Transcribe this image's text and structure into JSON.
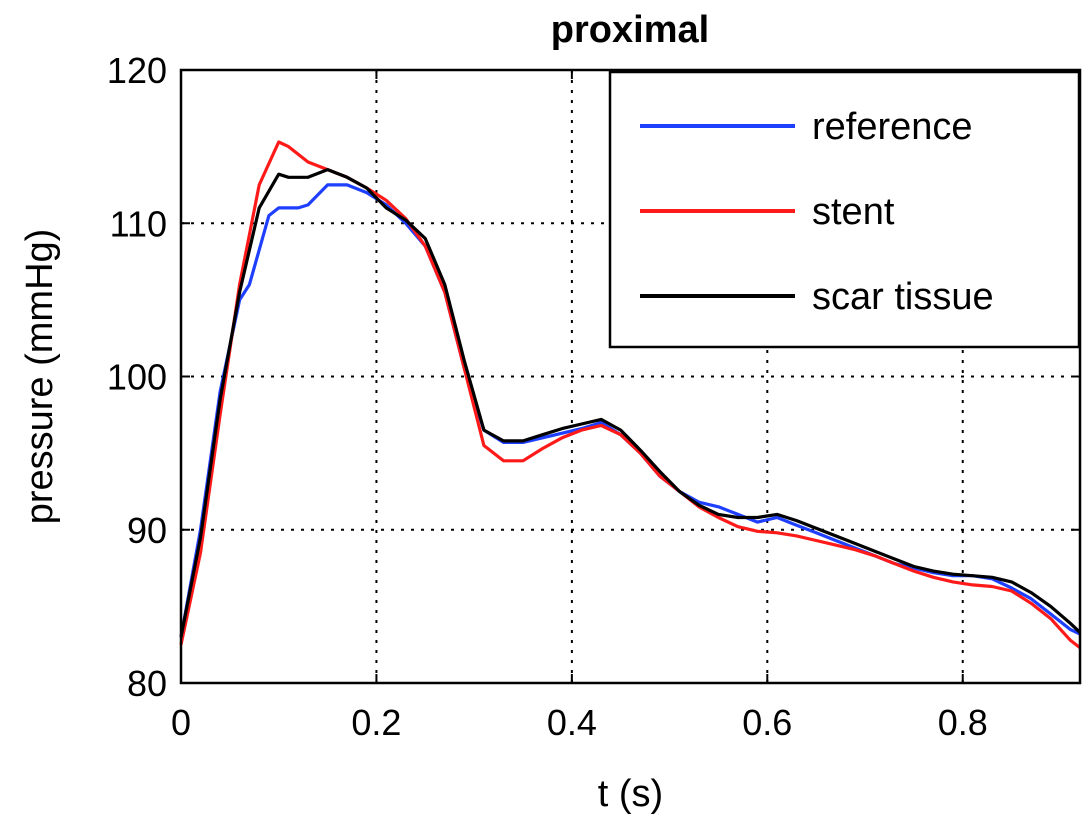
{
  "chart_data": {
    "type": "line",
    "title": "proximal",
    "xlabel": "t (s)",
    "ylabel": "pressure (mmHg)",
    "xlim": [
      0,
      0.92
    ],
    "ylim": [
      80,
      120
    ],
    "xticks": [
      0,
      0.2,
      0.4,
      0.6,
      0.8
    ],
    "xtick_labels": [
      "0",
      "0.2",
      "0.4",
      "0.6",
      "0.8"
    ],
    "yticks": [
      80,
      90,
      100,
      110,
      120
    ],
    "ytick_labels": [
      "80",
      "90",
      "100",
      "110",
      "120"
    ],
    "grid": true,
    "legend_position": "top-right",
    "series": [
      {
        "name": "reference",
        "color": "#1f3fff",
        "x": [
          0,
          0.02,
          0.04,
          0.06,
          0.07,
          0.09,
          0.1,
          0.12,
          0.13,
          0.15,
          0.17,
          0.19,
          0.21,
          0.23,
          0.25,
          0.27,
          0.29,
          0.31,
          0.33,
          0.35,
          0.37,
          0.39,
          0.41,
          0.43,
          0.45,
          0.47,
          0.49,
          0.51,
          0.53,
          0.55,
          0.57,
          0.59,
          0.61,
          0.63,
          0.65,
          0.67,
          0.69,
          0.71,
          0.73,
          0.75,
          0.77,
          0.79,
          0.81,
          0.83,
          0.85,
          0.87,
          0.89,
          0.91,
          0.92
        ],
        "y": [
          83,
          90,
          99,
          105,
          106,
          110.5,
          111,
          111,
          111.2,
          112.5,
          112.5,
          112,
          111.2,
          110,
          108.5,
          105.5,
          100.5,
          96.5,
          95.7,
          95.7,
          96,
          96.3,
          96.6,
          97,
          96.2,
          95,
          93.5,
          92.5,
          91.8,
          91.5,
          91,
          90.5,
          90.8,
          90.3,
          89.8,
          89.3,
          88.8,
          88.3,
          87.8,
          87.5,
          87.2,
          87,
          87,
          86.8,
          86.2,
          85.5,
          84.5,
          83.5,
          83.2
        ]
      },
      {
        "name": "stent",
        "color": "#ff1a1a",
        "x": [
          0,
          0.02,
          0.04,
          0.06,
          0.08,
          0.1,
          0.11,
          0.13,
          0.15,
          0.17,
          0.19,
          0.21,
          0.23,
          0.25,
          0.27,
          0.29,
          0.31,
          0.33,
          0.35,
          0.37,
          0.39,
          0.41,
          0.43,
          0.45,
          0.47,
          0.49,
          0.51,
          0.53,
          0.55,
          0.57,
          0.59,
          0.61,
          0.63,
          0.65,
          0.67,
          0.69,
          0.71,
          0.73,
          0.75,
          0.77,
          0.79,
          0.81,
          0.83,
          0.85,
          0.87,
          0.89,
          0.91,
          0.92
        ],
        "y": [
          82.5,
          88.5,
          97.5,
          106,
          112.5,
          115.3,
          115,
          114,
          113.5,
          113,
          112.3,
          111.5,
          110.3,
          108.5,
          105.5,
          100.5,
          95.5,
          94.5,
          94.5,
          95.3,
          96,
          96.5,
          96.8,
          96.2,
          95,
          93.5,
          92.5,
          91.5,
          90.8,
          90.2,
          89.9,
          89.8,
          89.6,
          89.3,
          89,
          88.7,
          88.3,
          87.8,
          87.3,
          86.9,
          86.6,
          86.4,
          86.3,
          86,
          85.2,
          84.2,
          82.8,
          82.3
        ]
      },
      {
        "name": "scar tissue",
        "color": "#000000",
        "x": [
          0,
          0.02,
          0.04,
          0.06,
          0.08,
          0.1,
          0.11,
          0.13,
          0.15,
          0.17,
          0.19,
          0.21,
          0.23,
          0.25,
          0.27,
          0.29,
          0.31,
          0.33,
          0.35,
          0.37,
          0.39,
          0.41,
          0.43,
          0.45,
          0.47,
          0.49,
          0.51,
          0.53,
          0.55,
          0.57,
          0.59,
          0.61,
          0.63,
          0.65,
          0.67,
          0.69,
          0.71,
          0.73,
          0.75,
          0.77,
          0.79,
          0.81,
          0.83,
          0.85,
          0.87,
          0.89,
          0.91,
          0.92
        ],
        "y": [
          83,
          89.5,
          98.5,
          105.5,
          111,
          113.2,
          113,
          113,
          113.5,
          113,
          112.3,
          111,
          110.2,
          109,
          106,
          101,
          96.5,
          95.8,
          95.8,
          96.2,
          96.6,
          96.9,
          97.2,
          96.5,
          95.2,
          93.8,
          92.5,
          91.6,
          91,
          90.8,
          90.8,
          91,
          90.6,
          90.1,
          89.6,
          89.1,
          88.6,
          88.1,
          87.6,
          87.3,
          87.1,
          87,
          86.9,
          86.6,
          85.9,
          85,
          83.9,
          83.3
        ]
      }
    ]
  }
}
